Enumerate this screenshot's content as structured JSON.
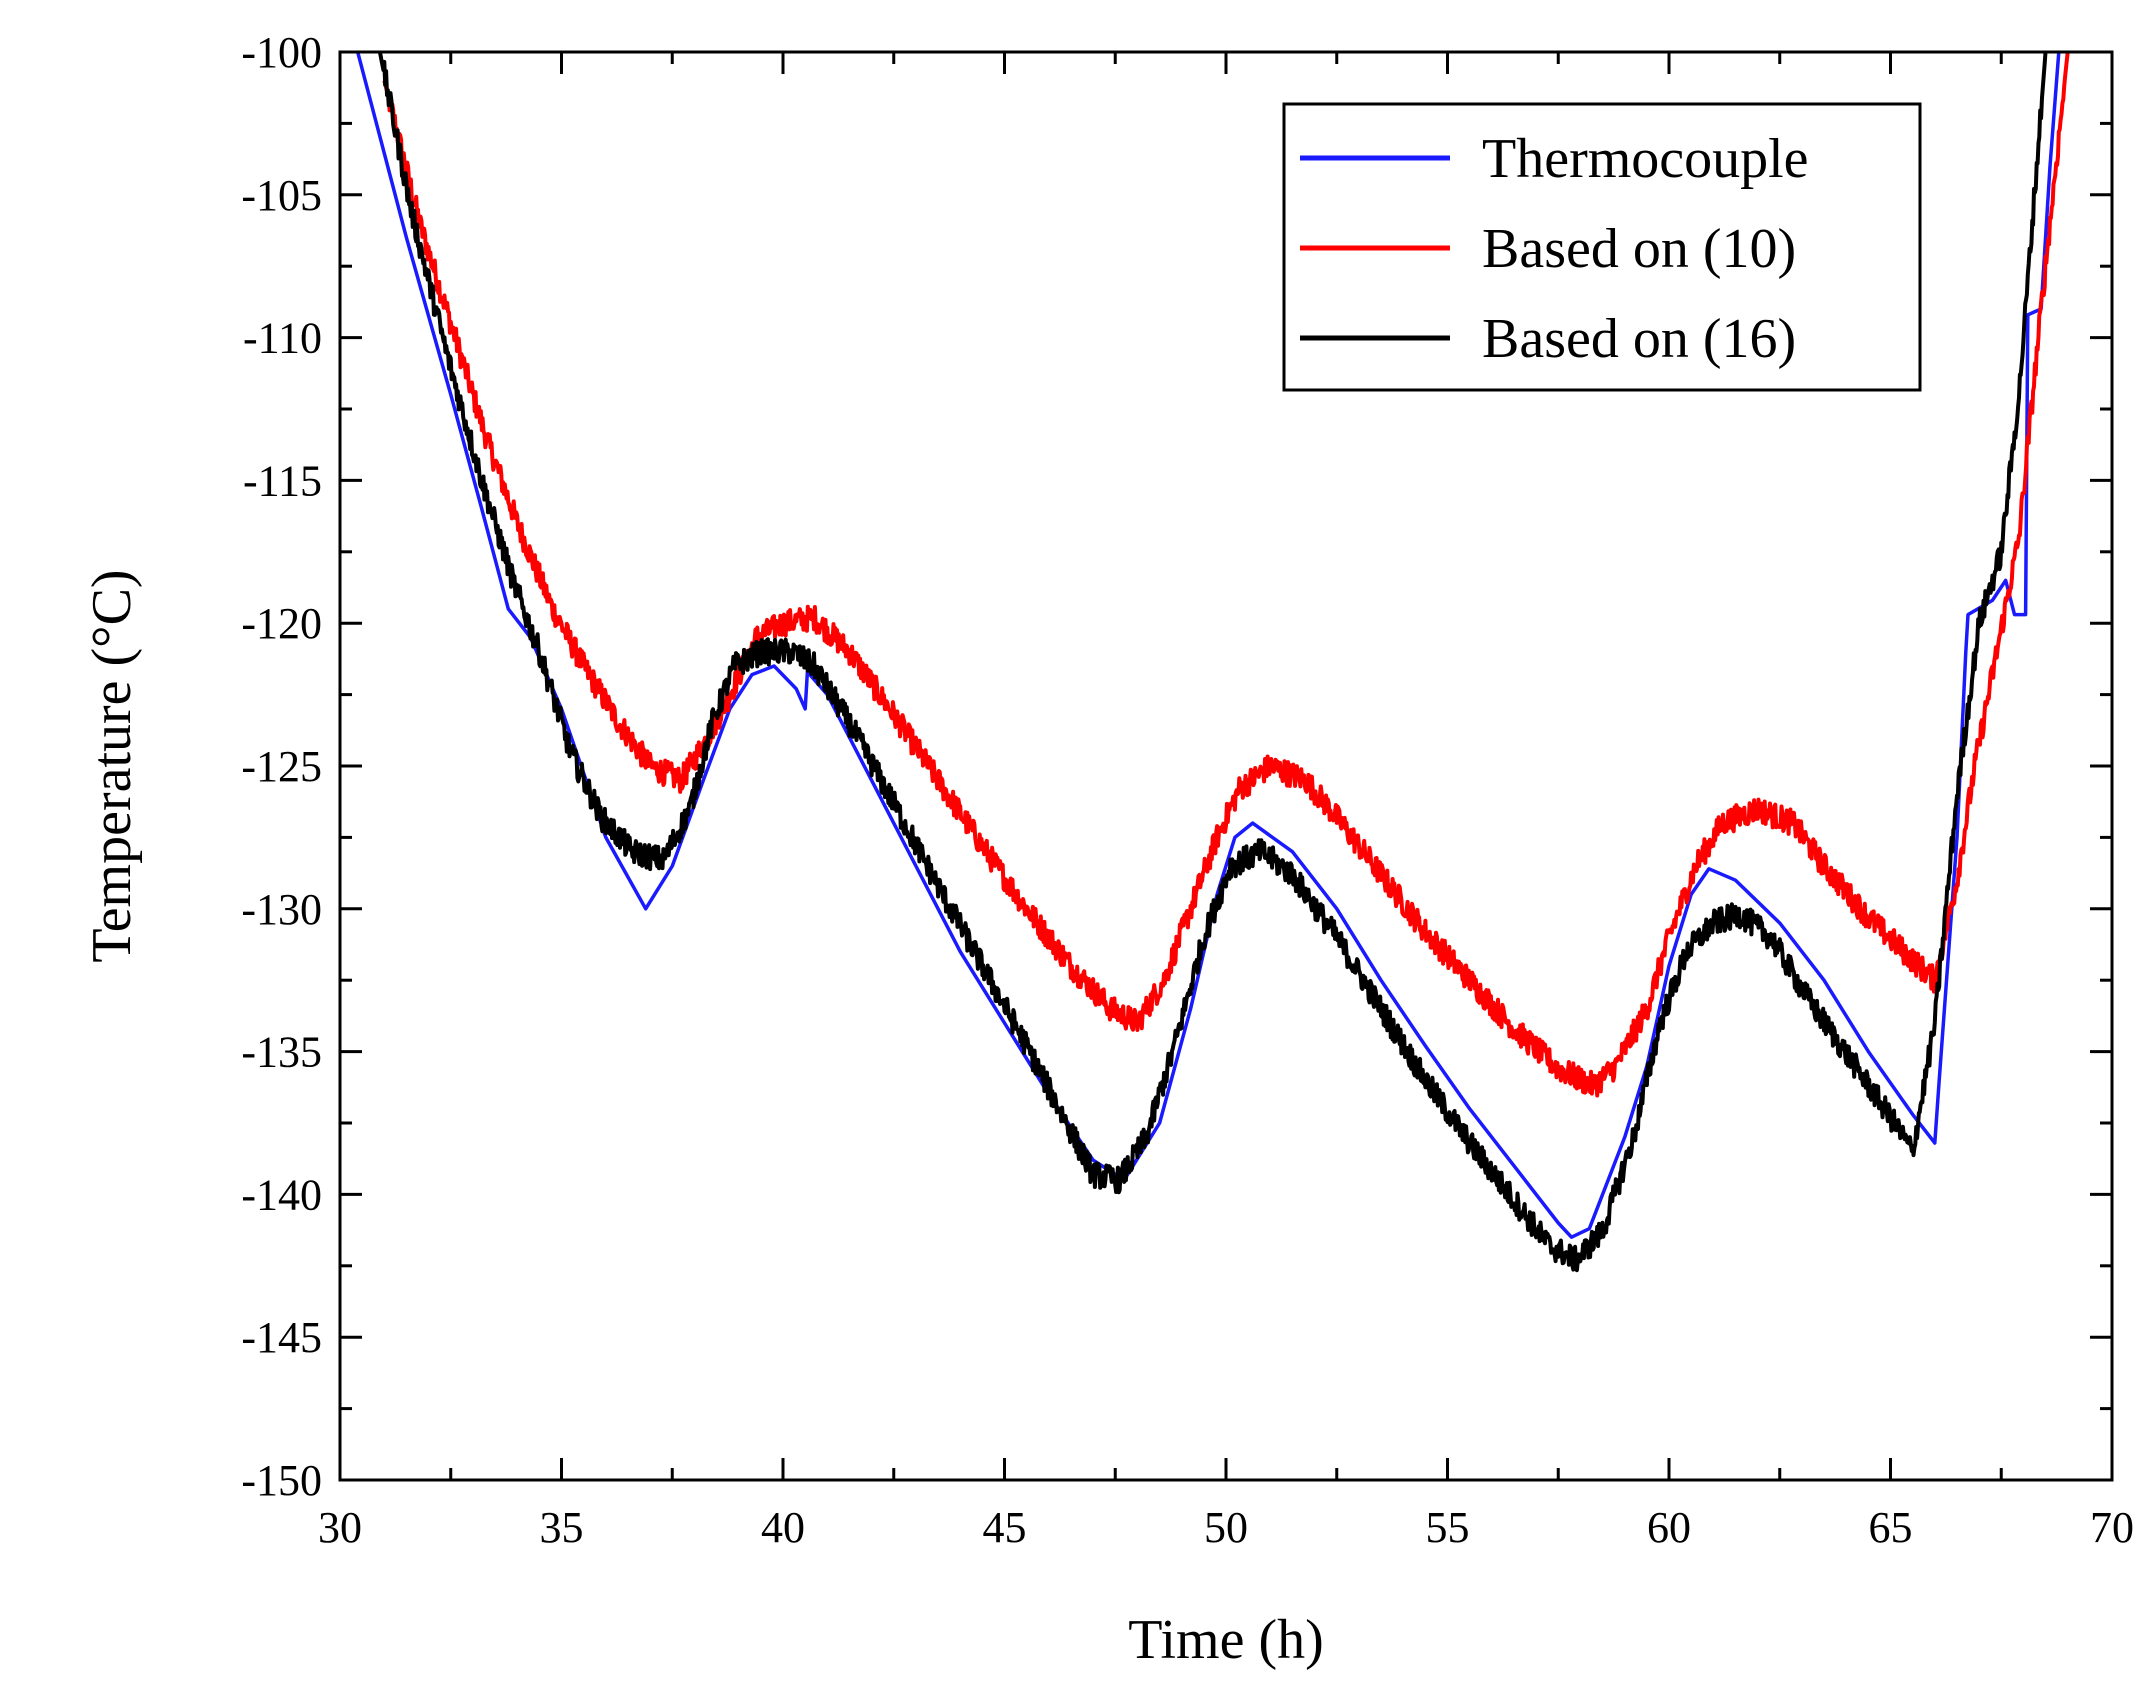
{
  "chart_data": {
    "type": "line",
    "title": "",
    "xlabel": "Time (h)",
    "ylabel": "Temperature (°C)",
    "xlim": [
      30,
      70
    ],
    "ylim": [
      -150,
      -100
    ],
    "x_ticks": [
      "30",
      "35",
      "40",
      "45",
      "50",
      "55",
      "60",
      "65",
      "70"
    ],
    "y_ticks": [
      "-100",
      "-105",
      "-110",
      "-115",
      "-120",
      "-125",
      "-130",
      "-135",
      "-140",
      "-145",
      "-150"
    ],
    "grid": false,
    "legend_position": "top-right",
    "series": [
      {
        "name": "Thermocouple",
        "color": "#1a1aff",
        "noise": 0,
        "points": [
          [
            30.4,
            -100
          ],
          [
            31.5,
            -106.5
          ],
          [
            32.5,
            -112
          ],
          [
            33.2,
            -116
          ],
          [
            33.8,
            -119.5
          ],
          [
            34.3,
            -120.5
          ],
          [
            35,
            -123
          ],
          [
            36,
            -127.5
          ],
          [
            36.9,
            -130
          ],
          [
            37.5,
            -128.5
          ],
          [
            38.2,
            -125.5
          ],
          [
            38.8,
            -123
          ],
          [
            39.3,
            -121.8
          ],
          [
            39.8,
            -121.5
          ],
          [
            40.3,
            -122.3
          ],
          [
            40.5,
            -123
          ],
          [
            40.55,
            -121.7
          ],
          [
            41,
            -122.5
          ],
          [
            42,
            -125.5
          ],
          [
            43,
            -128.5
          ],
          [
            44,
            -131.5
          ],
          [
            45,
            -134
          ],
          [
            46,
            -136.5
          ],
          [
            47,
            -138.8
          ],
          [
            47.7,
            -139.5
          ],
          [
            48.5,
            -137.5
          ],
          [
            49.2,
            -133.5
          ],
          [
            49.8,
            -129.5
          ],
          [
            50.2,
            -127.5
          ],
          [
            50.6,
            -127
          ],
          [
            51.5,
            -128
          ],
          [
            52.5,
            -130
          ],
          [
            53.5,
            -132.5
          ],
          [
            54.5,
            -134.8
          ],
          [
            55.5,
            -137
          ],
          [
            56.5,
            -139
          ],
          [
            57.5,
            -141
          ],
          [
            57.8,
            -141.5
          ],
          [
            58.2,
            -141.2
          ],
          [
            59,
            -138
          ],
          [
            59.5,
            -135.5
          ],
          [
            60,
            -132
          ],
          [
            60.5,
            -129.5
          ],
          [
            60.9,
            -128.6
          ],
          [
            61.5,
            -129
          ],
          [
            62.5,
            -130.5
          ],
          [
            63.5,
            -132.5
          ],
          [
            64.5,
            -135
          ],
          [
            65.5,
            -137.2
          ],
          [
            66,
            -138.2
          ],
          [
            66.1,
            -136
          ],
          [
            66.5,
            -127.5
          ],
          [
            66.7,
            -121
          ],
          [
            66.75,
            -119.7
          ],
          [
            67.3,
            -119.2
          ],
          [
            67.6,
            -118.5
          ],
          [
            67.8,
            -119.7
          ],
          [
            68.05,
            -119.7
          ],
          [
            68.1,
            -109.2
          ],
          [
            68.4,
            -109
          ],
          [
            68.6,
            -104
          ],
          [
            68.8,
            -100
          ]
        ]
      },
      {
        "name": "Based on (10)",
        "color": "#ff0000",
        "noise": 0.45,
        "points": [
          [
            31,
            -101
          ],
          [
            31.8,
            -106
          ],
          [
            32.6,
            -110
          ],
          [
            33.3,
            -113.5
          ],
          [
            34,
            -116.5
          ],
          [
            34.8,
            -119.5
          ],
          [
            35.5,
            -121.5
          ],
          [
            36.3,
            -123.5
          ],
          [
            37,
            -125
          ],
          [
            37.7,
            -125.5
          ],
          [
            38.3,
            -124
          ],
          [
            38.8,
            -122.5
          ],
          [
            39.4,
            -120.5
          ],
          [
            40,
            -120
          ],
          [
            40.7,
            -119.8
          ],
          [
            41.5,
            -121
          ],
          [
            42.5,
            -123.2
          ],
          [
            43.5,
            -125.5
          ],
          [
            44.5,
            -127.8
          ],
          [
            45.5,
            -130
          ],
          [
            46.5,
            -132
          ],
          [
            47.4,
            -133.5
          ],
          [
            48,
            -134
          ],
          [
            48.6,
            -132.5
          ],
          [
            49.2,
            -130
          ],
          [
            49.8,
            -127.5
          ],
          [
            50.3,
            -125.8
          ],
          [
            51,
            -125
          ],
          [
            51.8,
            -125.5
          ],
          [
            52.5,
            -126.8
          ],
          [
            53.5,
            -128.8
          ],
          [
            54.5,
            -130.8
          ],
          [
            55.5,
            -132.5
          ],
          [
            56.5,
            -134.2
          ],
          [
            57.5,
            -135.6
          ],
          [
            58.3,
            -136.2
          ],
          [
            58.8,
            -135.5
          ],
          [
            59.5,
            -133.5
          ],
          [
            60,
            -131
          ],
          [
            60.6,
            -128.5
          ],
          [
            61.2,
            -127
          ],
          [
            62,
            -126.5
          ],
          [
            62.8,
            -127
          ],
          [
            63.5,
            -128.5
          ],
          [
            64.5,
            -130.3
          ],
          [
            65.5,
            -131.8
          ],
          [
            66,
            -132.5
          ],
          [
            66.5,
            -129
          ],
          [
            66.9,
            -125
          ],
          [
            67.4,
            -121
          ],
          [
            67.9,
            -117
          ],
          [
            68.4,
            -109
          ],
          [
            68.8,
            -103
          ],
          [
            69,
            -100
          ]
        ]
      },
      {
        "name": "Based on (16)",
        "color": "#000000",
        "noise": 0.45,
        "points": [
          [
            30.9,
            -100
          ],
          [
            31.6,
            -105.5
          ],
          [
            32.4,
            -110.5
          ],
          [
            33.2,
            -115
          ],
          [
            33.9,
            -118.5
          ],
          [
            34.5,
            -121
          ],
          [
            35.2,
            -124.5
          ],
          [
            35.9,
            -126.8
          ],
          [
            36.6,
            -128
          ],
          [
            37.3,
            -128.3
          ],
          [
            37.9,
            -126.5
          ],
          [
            38.4,
            -123.5
          ],
          [
            38.9,
            -121.5
          ],
          [
            39.5,
            -121
          ],
          [
            40.2,
            -121
          ],
          [
            40.7,
            -121.5
          ],
          [
            41.5,
            -123.5
          ],
          [
            42.5,
            -126.3
          ],
          [
            43.5,
            -129.2
          ],
          [
            44.5,
            -132
          ],
          [
            45.5,
            -134.8
          ],
          [
            46.3,
            -137.2
          ],
          [
            47,
            -139.3
          ],
          [
            47.6,
            -139.5
          ],
          [
            48.2,
            -138
          ],
          [
            48.8,
            -135
          ],
          [
            49.5,
            -131
          ],
          [
            50.1,
            -128.5
          ],
          [
            50.8,
            -128
          ],
          [
            51.5,
            -128.8
          ],
          [
            52.5,
            -131
          ],
          [
            53.5,
            -133.5
          ],
          [
            54.5,
            -136
          ],
          [
            55.5,
            -138.2
          ],
          [
            56.5,
            -140.2
          ],
          [
            57.3,
            -141.8
          ],
          [
            57.9,
            -142.3
          ],
          [
            58.5,
            -141.3
          ],
          [
            59.2,
            -138
          ],
          [
            59.8,
            -134
          ],
          [
            60.4,
            -131.5
          ],
          [
            61,
            -130.5
          ],
          [
            61.6,
            -130.2
          ],
          [
            62.3,
            -131
          ],
          [
            63.2,
            -133.3
          ],
          [
            64.2,
            -135.5
          ],
          [
            65,
            -137.3
          ],
          [
            65.5,
            -138.5
          ],
          [
            66,
            -134
          ],
          [
            66.5,
            -126
          ],
          [
            67,
            -120
          ],
          [
            67.5,
            -117.5
          ],
          [
            67.9,
            -112
          ],
          [
            68.2,
            -106
          ],
          [
            68.5,
            -100
          ]
        ]
      }
    ]
  }
}
